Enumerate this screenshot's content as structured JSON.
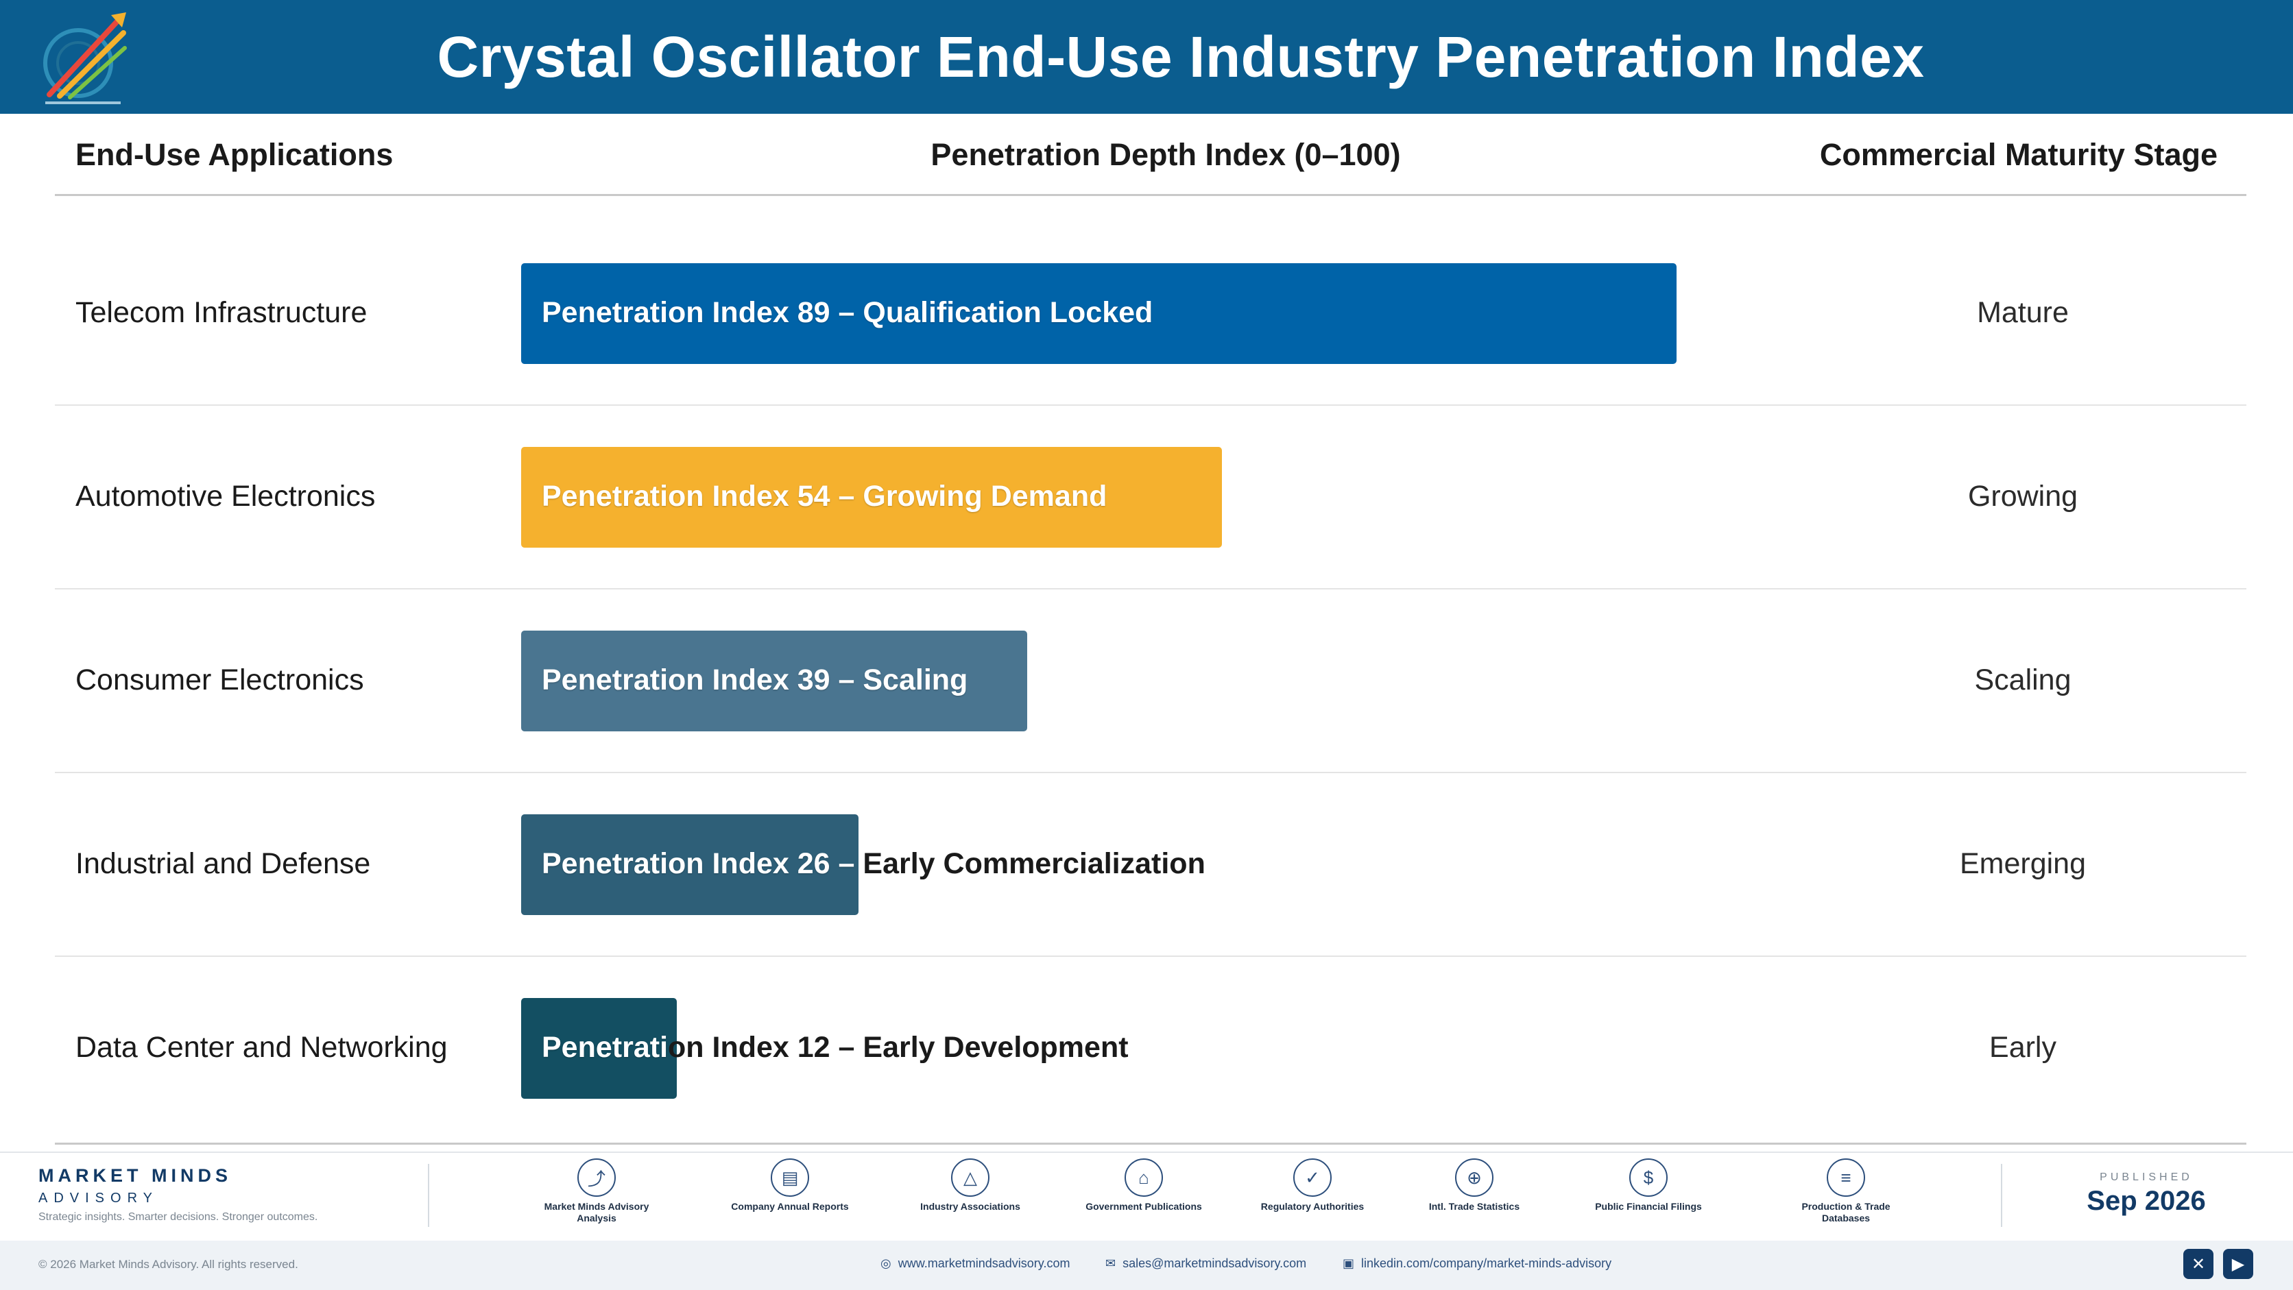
{
  "header": {
    "title": "Crystal Oscillator End-Use Industry Penetration Index"
  },
  "columns": {
    "app": "End-Use Applications",
    "depth": "Penetration Depth Index (0–100)",
    "stage": "Commercial Maturity Stage"
  },
  "chart_data": {
    "type": "bar",
    "orientation": "horizontal",
    "title": "Crystal Oscillator End-Use Industry Penetration Index",
    "xlabel": "Penetration Depth Index (0–100)",
    "xlim": [
      0,
      100
    ],
    "categories": [
      "Telecom Infrastructure",
      "Automotive Electronics",
      "Consumer Electronics",
      "Industrial and Defense",
      "Data Center and Networking"
    ],
    "values": [
      89,
      54,
      39,
      26,
      12
    ],
    "bar_labels": [
      "Penetration Index 89 – Qualification Locked",
      "Penetration Index 54 – Growing Demand",
      "Penetration Index 39 – Scaling",
      "Penetration Index 26 – Early Commercialization",
      "Penetration Index 12 – Early Development"
    ],
    "stages": [
      "Mature",
      "Growing",
      "Scaling",
      "Emerging",
      "Early"
    ],
    "colors": [
      "#0063a8",
      "#f5b12e",
      "#4a7590",
      "#2e5f78",
      "#134f62"
    ]
  },
  "footer": {
    "brand_name": "MARKET MINDS",
    "brand_sub": "ADVISORY",
    "brand_tag": "Strategic insights. Smarter decisions. Stronger outcomes.",
    "sources": [
      {
        "icon": "trend-chart-icon",
        "label": "Market Minds Advisory Analysis"
      },
      {
        "icon": "document-icon",
        "label": "Company Annual Reports"
      },
      {
        "icon": "network-icon",
        "label": "Industry Associations"
      },
      {
        "icon": "government-building-icon",
        "label": "Government Publications"
      },
      {
        "icon": "shield-check-icon",
        "label": "Regulatory Authorities"
      },
      {
        "icon": "globe-icon",
        "label": "Intl. Trade Statistics"
      },
      {
        "icon": "dollar-coin-icon",
        "label": "Public Financial Filings"
      },
      {
        "icon": "database-icon",
        "label": "Production & Trade Databases"
      }
    ],
    "published_label": "PUBLISHED",
    "published_date": "Sep 2026",
    "copyright": "© 2026 Market Minds Advisory. All rights reserved.",
    "website": "www.marketmindsadvisory.com",
    "email": "sales@marketmindsadvisory.com",
    "linkedin": "linkedin.com/company/market-minds-advisory"
  }
}
